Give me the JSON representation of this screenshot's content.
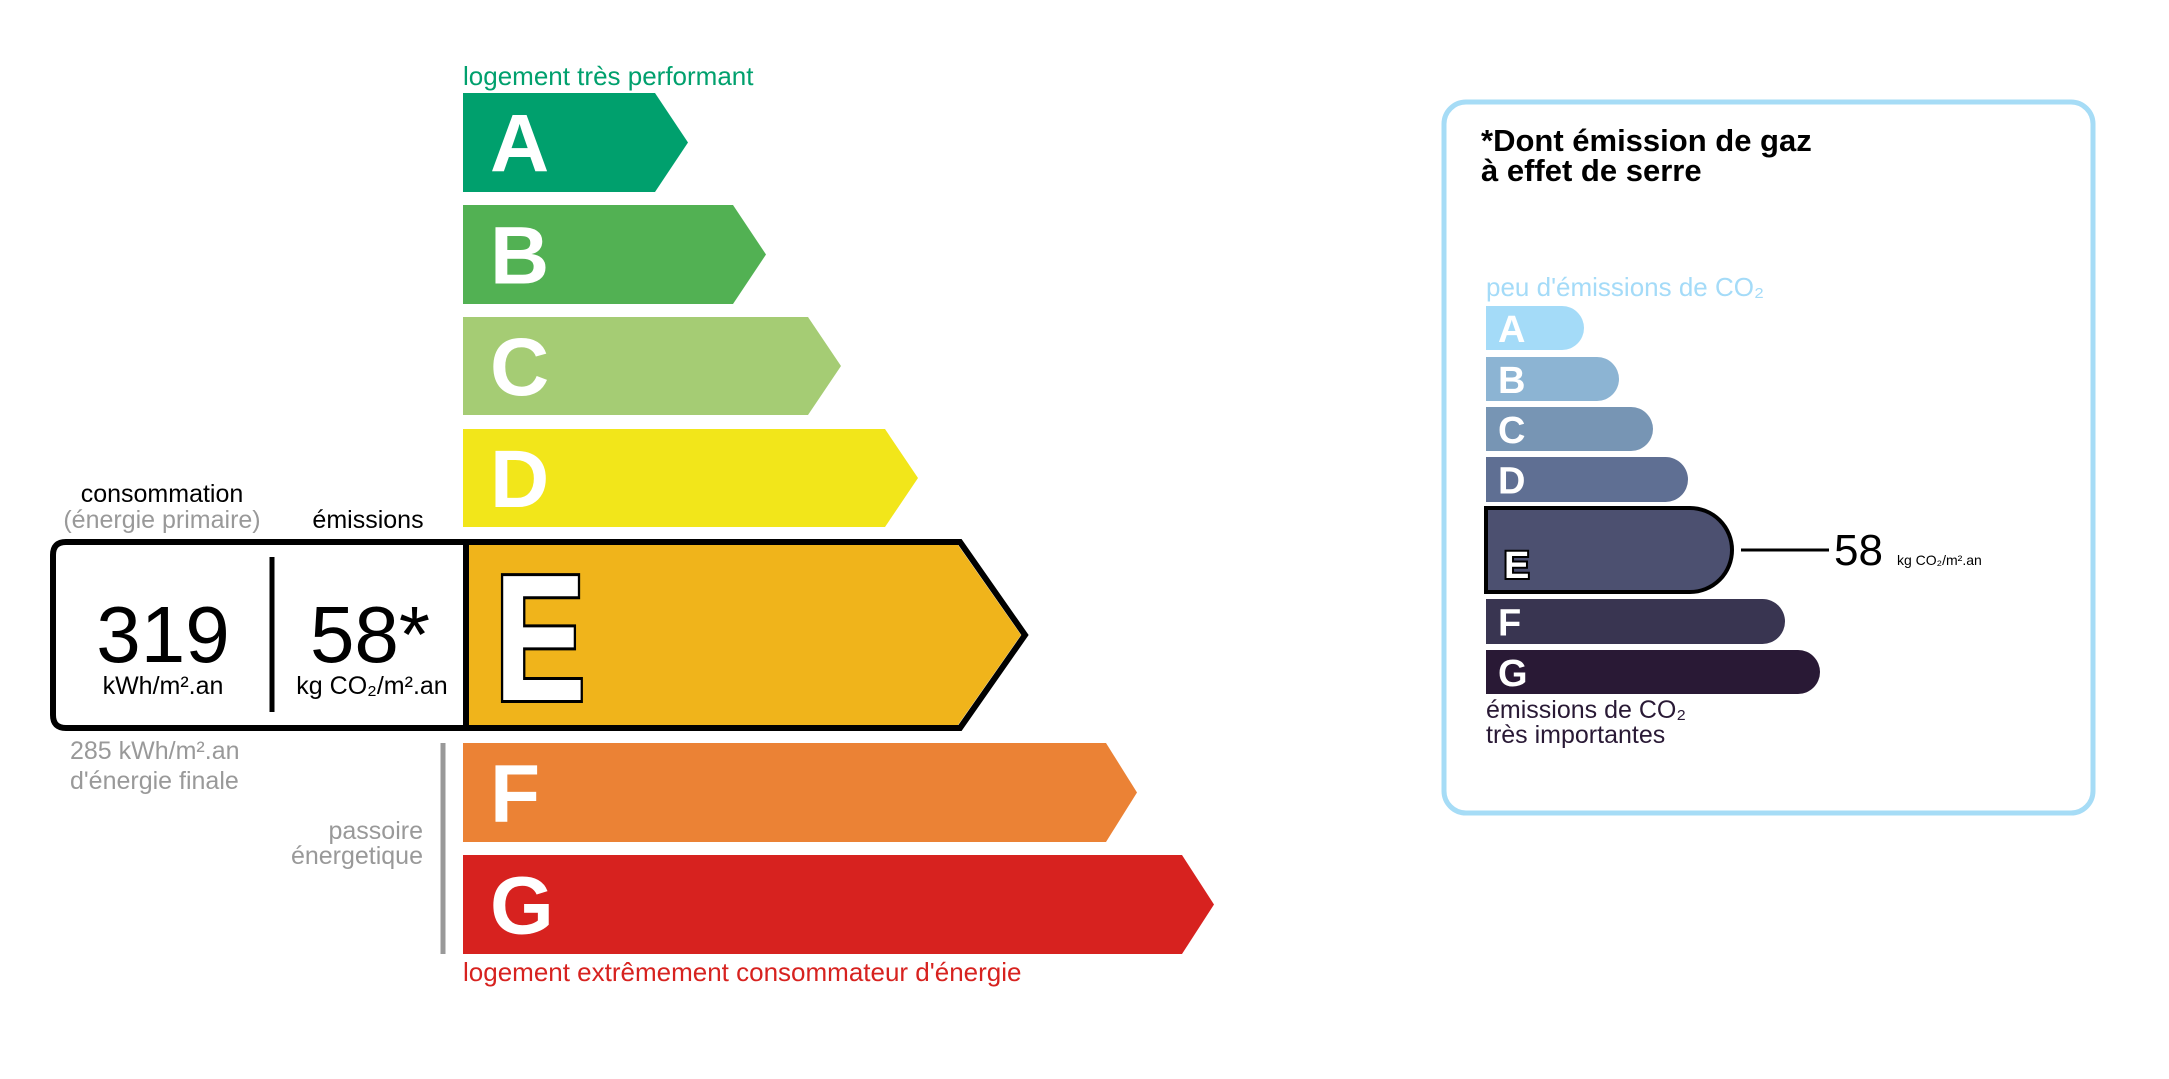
{
  "energy": {
    "top_label": "logement très performant",
    "bottom_label": "logement extrêmement consommateur d'énergie",
    "classes": [
      {
        "letter": "A",
        "color": "#00a06d"
      },
      {
        "letter": "B",
        "color": "#52b153"
      },
      {
        "letter": "C",
        "color": "#a5cc74"
      },
      {
        "letter": "D",
        "color": "#f2e61a"
      },
      {
        "letter": "E",
        "color": "#f0b41b"
      },
      {
        "letter": "F",
        "color": "#eb8235"
      },
      {
        "letter": "G",
        "color": "#d7221f"
      }
    ],
    "current_class": "E",
    "consumption_label": "consommation",
    "consumption_sublabel": "(énergie primaire)",
    "emissions_label": "émissions",
    "consumption_value": "319",
    "consumption_unit": "kWh/m².an",
    "emissions_value": "58*",
    "emissions_unit": "kg CO₂/m².an",
    "final_energy_line1": "285 kWh/m².an",
    "final_energy_line2": "d'énergie finale",
    "passoire_line1": "passoire",
    "passoire_line2": "énergetique"
  },
  "ges": {
    "title_line1": "*Dont émission de gaz",
    "title_line2": "à effet de serre",
    "top_label": "peu d'émissions de CO₂",
    "bottom_line1": "émissions de CO₂",
    "bottom_line2": "très importantes",
    "classes": [
      {
        "letter": "A",
        "color": "#a4dbf8"
      },
      {
        "letter": "B",
        "color": "#8cb4d3"
      },
      {
        "letter": "C",
        "color": "#7795b4"
      },
      {
        "letter": "D",
        "color": "#5f6f93"
      },
      {
        "letter": "E",
        "color": "#4c5070"
      },
      {
        "letter": "F",
        "color": "#393551"
      },
      {
        "letter": "G",
        "color": "#291935"
      }
    ],
    "current_class": "E",
    "value": "58",
    "unit": "kg CO₂/m².an",
    "border_color": "#a6dcf6"
  }
}
